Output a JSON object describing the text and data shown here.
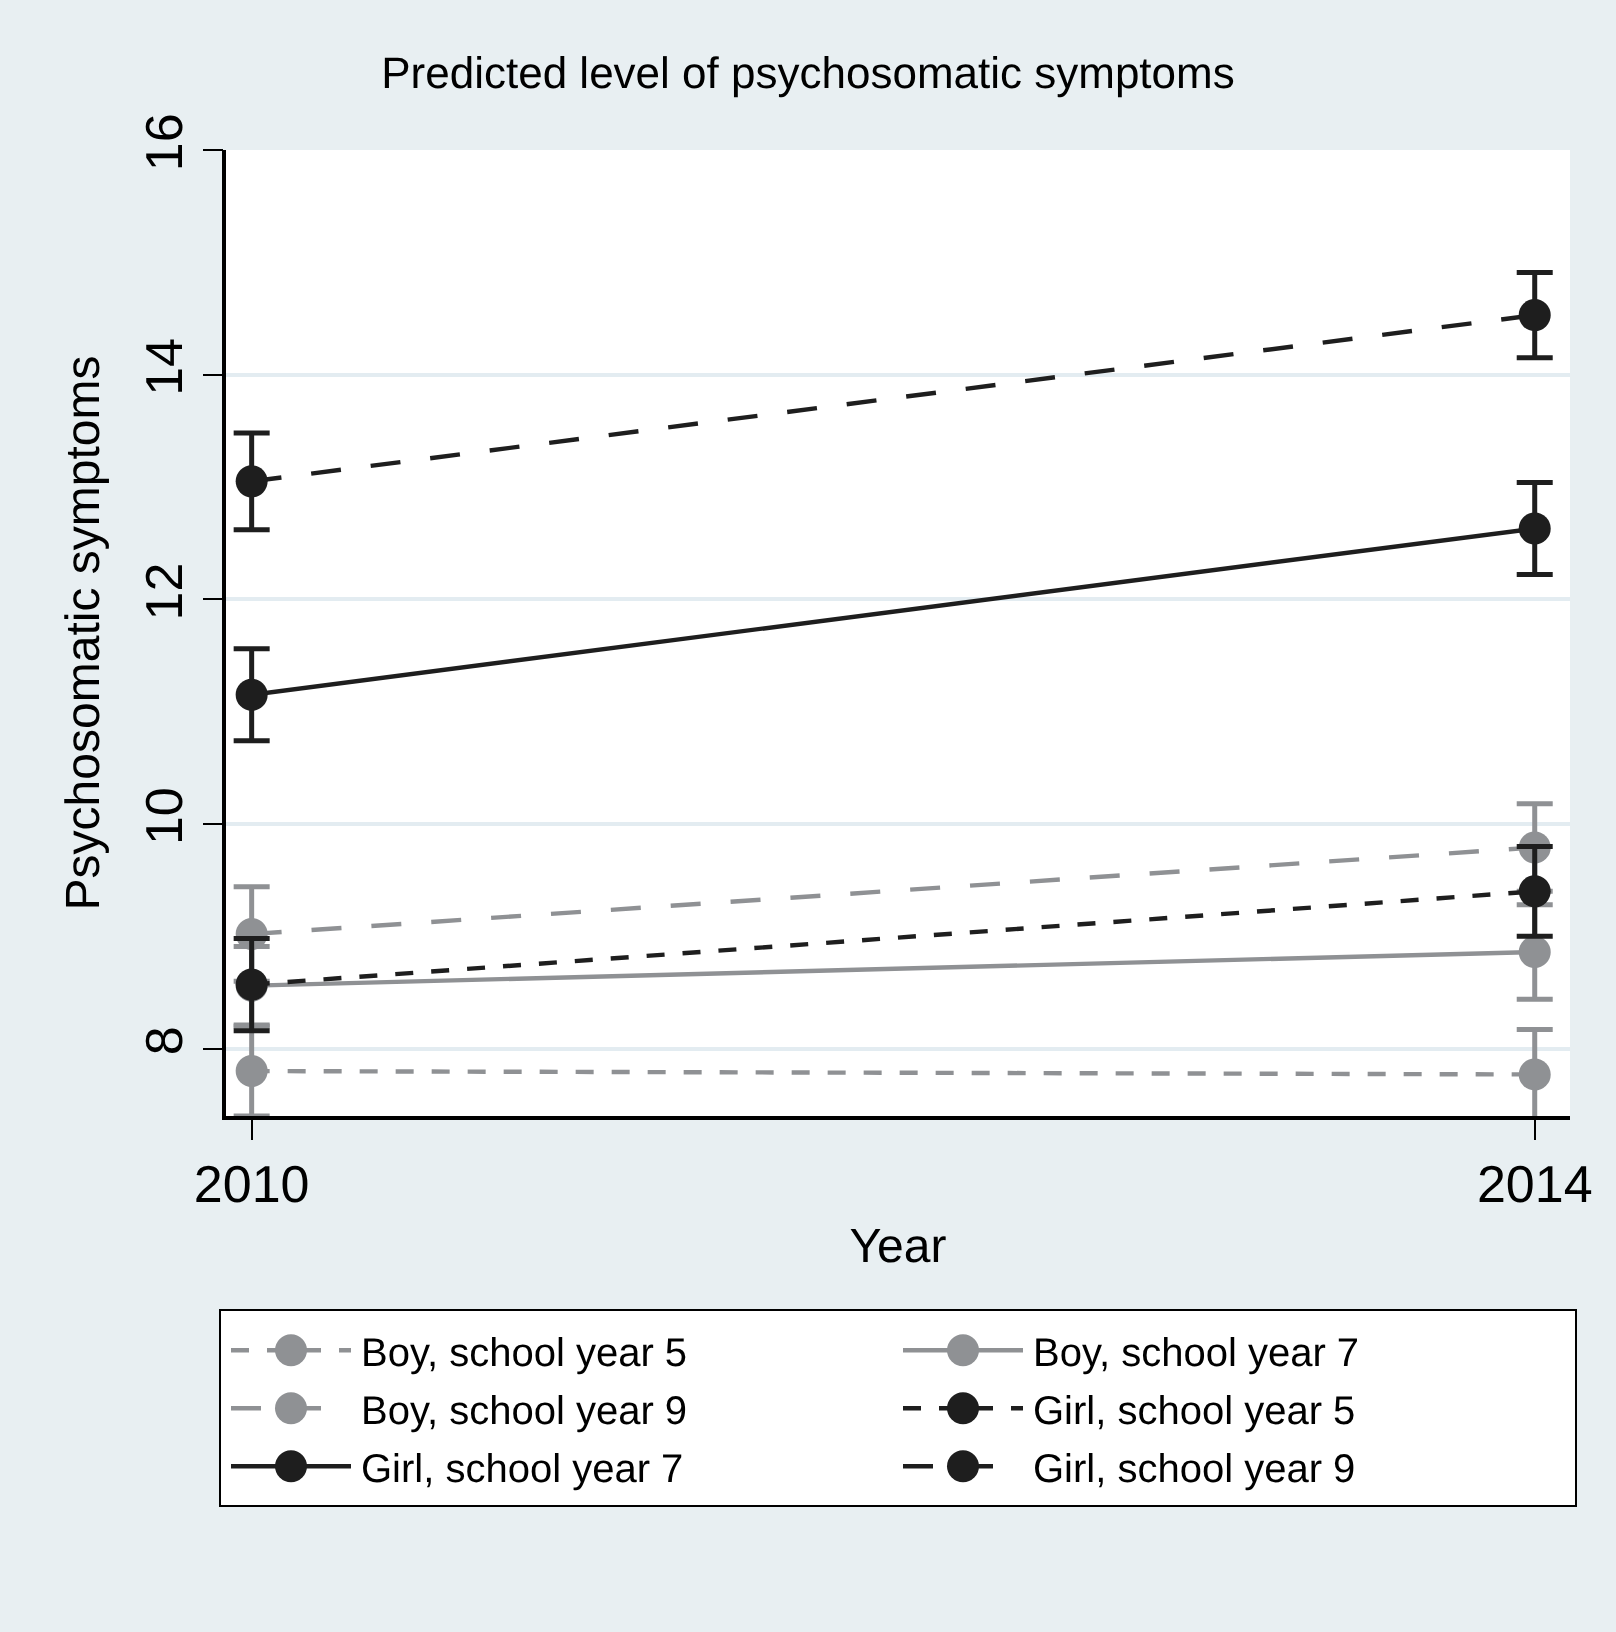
{
  "chart_data": {
    "type": "line",
    "title": "Predicted level of psychosomatic symptoms",
    "xlabel": "Year",
    "ylabel": "Psychosomatic symptoms",
    "x": [
      2010,
      2014
    ],
    "xlim": [
      2009.92,
      2014.11
    ],
    "xticks": [
      2010,
      2014
    ],
    "ylim": [
      7.4,
      16
    ],
    "yticks": [
      8,
      10,
      12,
      14,
      16
    ],
    "grid": "y",
    "legend": "bottom",
    "marker": "circle",
    "series": [
      {
        "name": "Boy, school year 5",
        "color": "#8f9194",
        "line_style": "dotted",
        "values": [
          7.8,
          7.77
        ],
        "errors": [
          0.4,
          0.4
        ]
      },
      {
        "name": "Boy, school year 7",
        "color": "#8f9194",
        "line_style": "solid",
        "values": [
          8.56,
          8.86
        ],
        "errors": [
          0.35,
          0.42
        ]
      },
      {
        "name": "Boy, school year 9",
        "color": "#8f9194",
        "line_style": "dashed",
        "values": [
          9.02,
          9.79
        ],
        "errors": [
          0.42,
          0.39
        ]
      },
      {
        "name": "Girl, school year 5",
        "color": "#1e1e1e",
        "line_style": "dotted",
        "values": [
          8.57,
          9.4
        ],
        "errors": [
          0.41,
          0.4
        ]
      },
      {
        "name": "Girl, school year 7",
        "color": "#1e1e1e",
        "line_style": "solid",
        "values": [
          11.15,
          12.63
        ],
        "errors": [
          0.41,
          0.41
        ]
      },
      {
        "name": "Girl, school year 9",
        "color": "#1e1e1e",
        "line_style": "dashed",
        "values": [
          13.05,
          14.53
        ],
        "errors": [
          0.43,
          0.38
        ]
      }
    ]
  }
}
